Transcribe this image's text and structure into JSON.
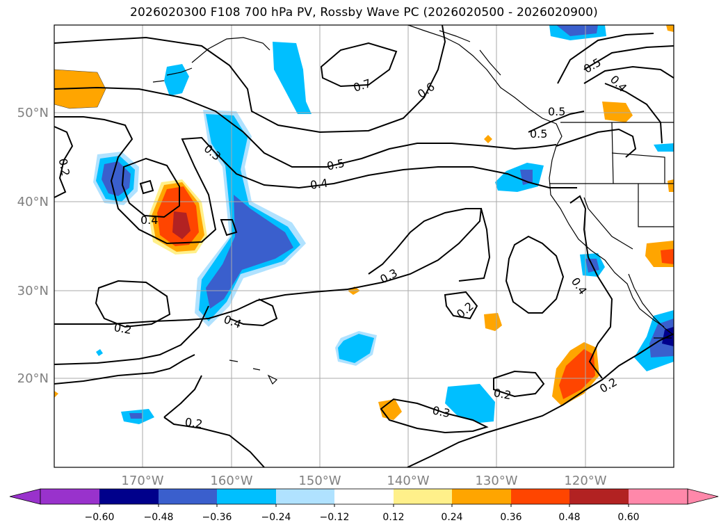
{
  "title": "2026020300 F108 700 hPa PV, Rossby Wave PC (2026020500 - 2026020900)",
  "map": {
    "lat_labels": [
      "50°N",
      "40°N",
      "30°N",
      "20°N"
    ],
    "lon_labels": [
      "170°W",
      "160°W",
      "150°W",
      "140°W",
      "130°W",
      "120°W"
    ],
    "lat_range": [
      10,
      60
    ],
    "lon_range": [
      -180,
      -110
    ],
    "gridlines": true,
    "label_color": "#808080"
  },
  "contour_labels": [
    "0.7",
    "0.6",
    "0.5",
    "0.4",
    "0.3",
    "0.2",
    "0.5",
    "0.4",
    "0.3",
    "0.4",
    "0.2",
    "0.4",
    "0.2",
    "0.3",
    "0.2",
    "0.2",
    "0.2",
    "0.4",
    "0.5",
    "0.5",
    "0.4"
  ],
  "colorbar": {
    "ticks": [
      "−0.60",
      "−0.48",
      "−0.36",
      "−0.24",
      "−0.12",
      "0.12",
      "0.24",
      "0.36",
      "0.48",
      "0.60"
    ],
    "colors": [
      "#9932cc",
      "#00008b",
      "#3a5fcd",
      "#00bfff",
      "#b0e2ff",
      "#ffffff",
      "#fff08a",
      "#ffa500",
      "#ff4500",
      "#b22222",
      "#ff88aa"
    ]
  }
}
